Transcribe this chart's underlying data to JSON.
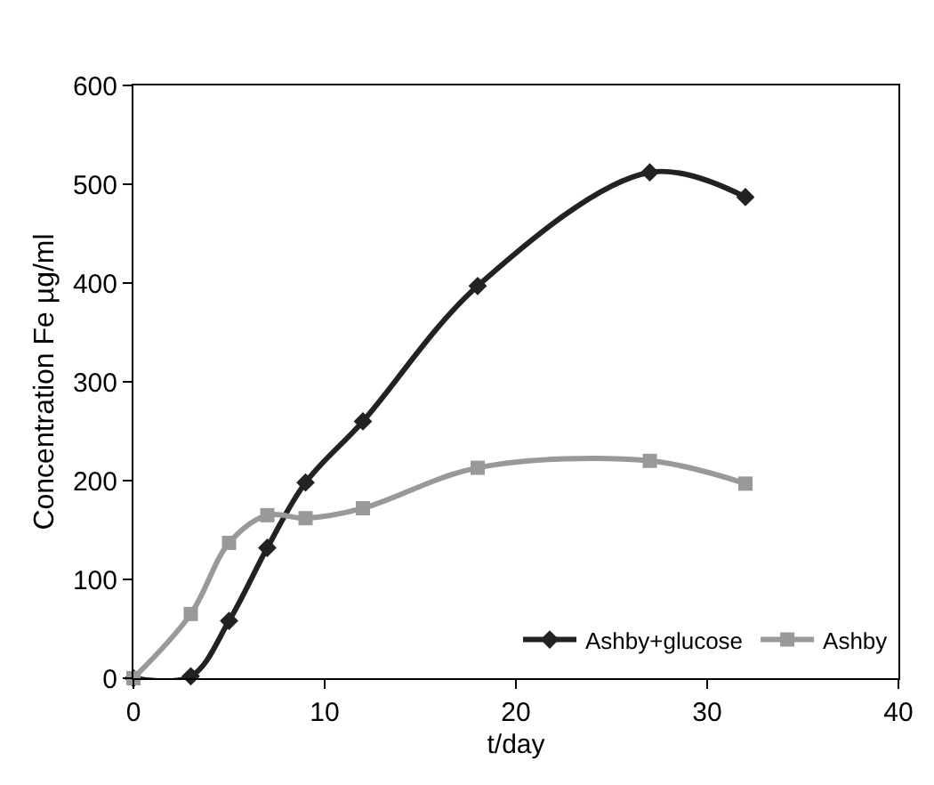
{
  "chart_data": {
    "type": "line",
    "xlabel": "t/day",
    "ylabel": "Concentration Fe µg/ml",
    "xlim": [
      0,
      40
    ],
    "ylim": [
      0,
      600
    ],
    "xticks": [
      0,
      10,
      20,
      30,
      40
    ],
    "yticks": [
      0,
      100,
      200,
      300,
      400,
      500,
      600
    ],
    "grid": false,
    "legend": "bottom right",
    "series": [
      {
        "name": "Ashby+glucose",
        "color": "#222222",
        "marker": "diamond",
        "x": [
          0,
          3,
          5,
          7,
          9,
          12,
          18,
          27,
          32
        ],
        "values": [
          0,
          2,
          58,
          132,
          198,
          260,
          397,
          512,
          487
        ]
      },
      {
        "name": "Ashby",
        "color": "#999999",
        "marker": "square",
        "x": [
          0,
          3,
          5,
          7,
          9,
          12,
          18,
          27,
          32
        ],
        "values": [
          0,
          65,
          137,
          165,
          162,
          172,
          213,
          220,
          197
        ]
      }
    ]
  }
}
